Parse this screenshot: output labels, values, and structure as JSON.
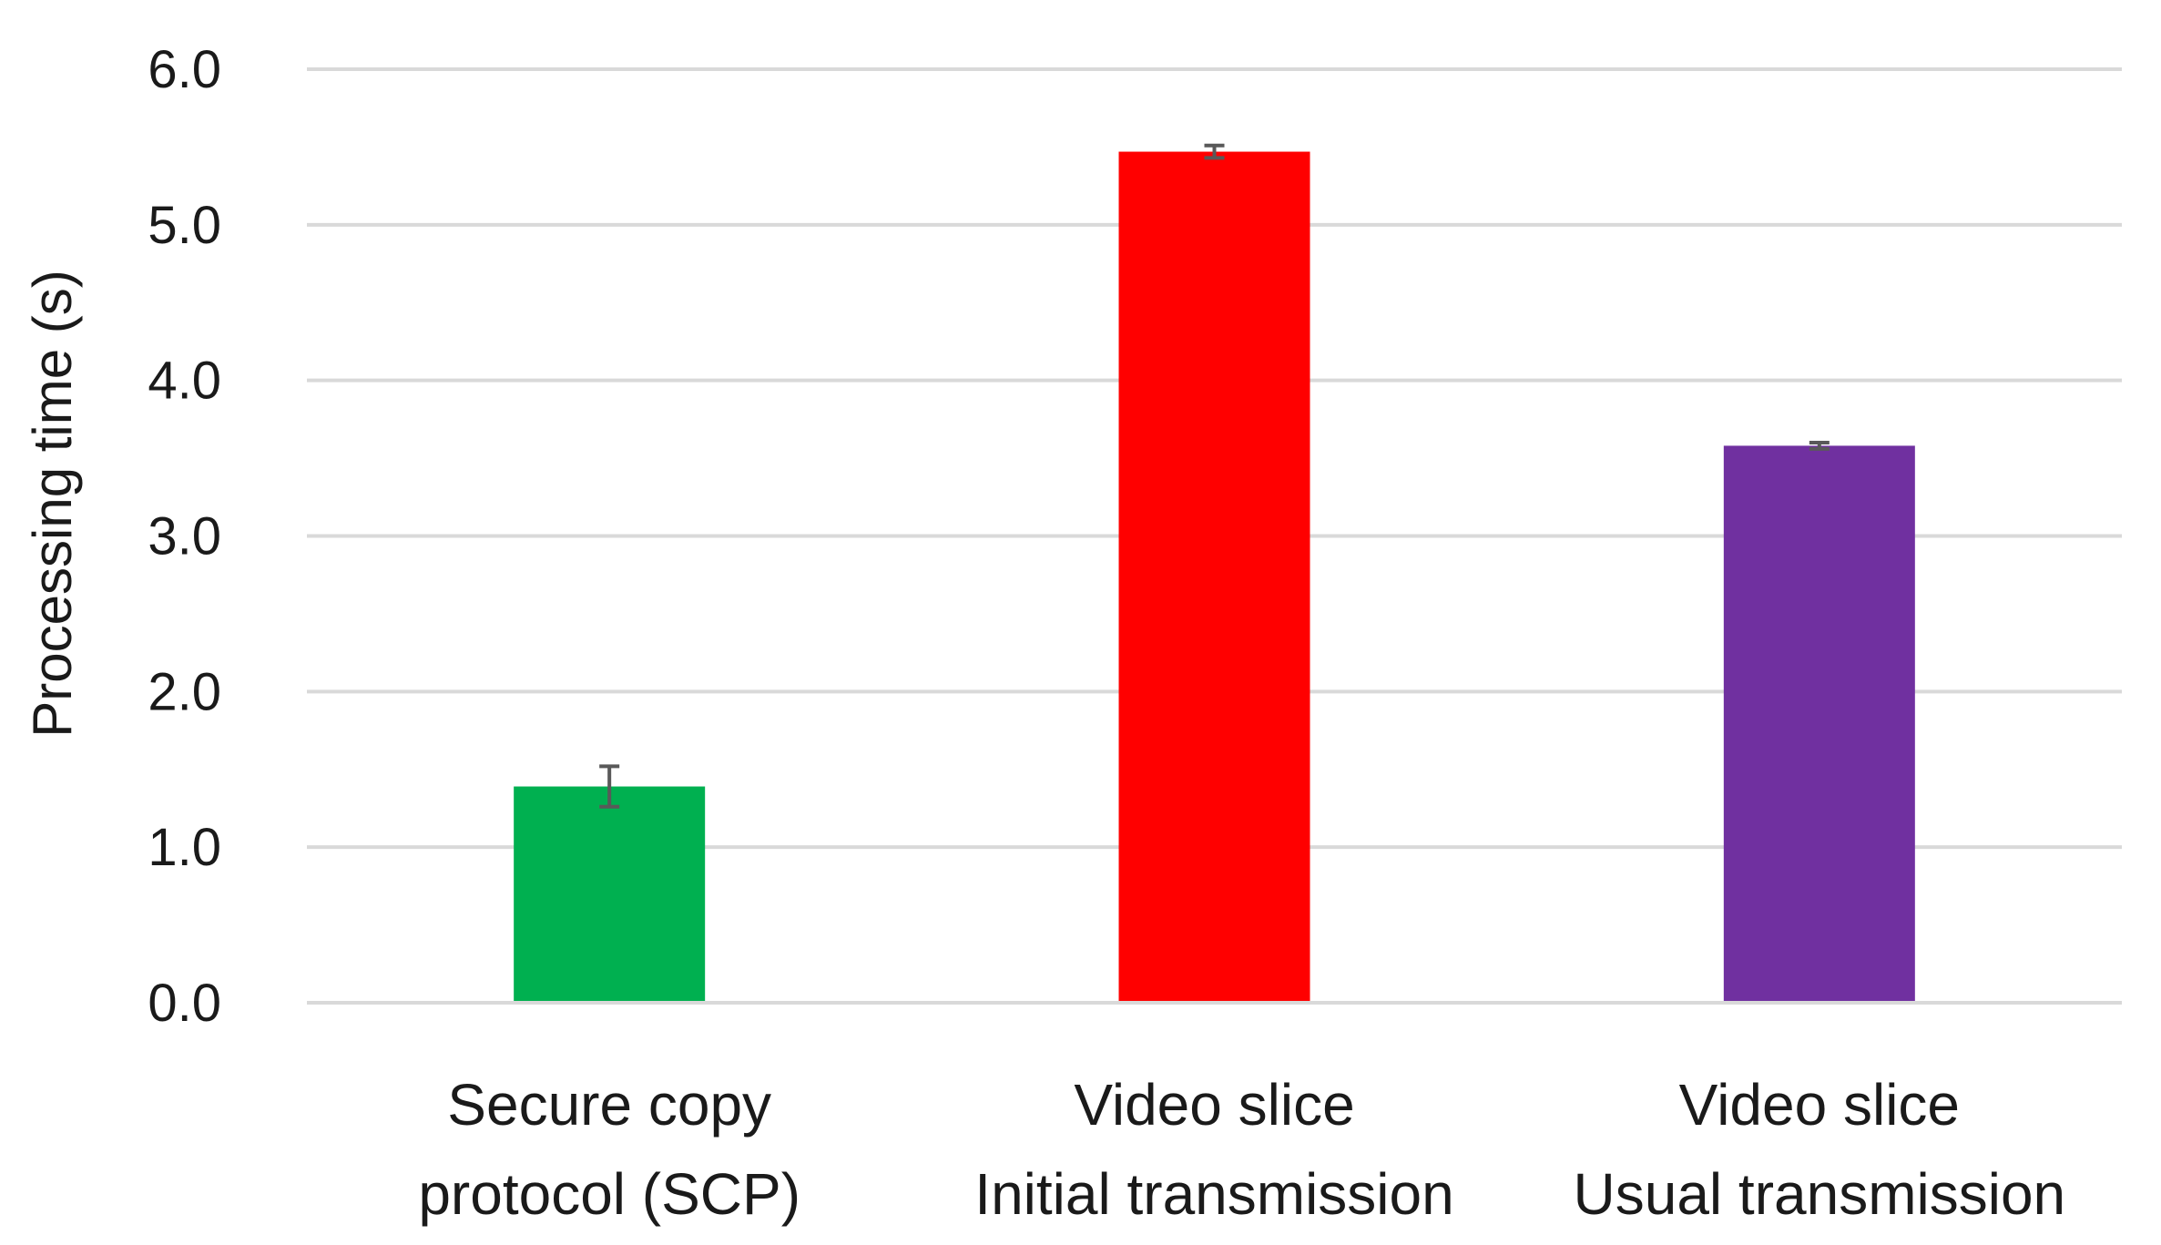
{
  "chart_data": {
    "type": "bar",
    "title": "",
    "xlabel": "",
    "ylabel": "Processing time (s)",
    "ylim": [
      0,
      6.0
    ],
    "yticks": [
      "0.0",
      "1.0",
      "2.0",
      "3.0",
      "4.0",
      "5.0",
      "6.0"
    ],
    "grid": true,
    "categories": [
      [
        "Secure copy",
        "protocol (SCP)"
      ],
      [
        "Video slice",
        "Initial transmission"
      ],
      [
        "Video slice",
        "Usual transmission"
      ]
    ],
    "values": [
      1.39,
      5.47,
      3.58
    ],
    "errors": [
      0.13,
      0.04,
      0.02
    ],
    "colors": [
      "#00b050",
      "#ff0000",
      "#7030a0"
    ],
    "gridline_color": "#d9d9d9",
    "errorbar_color": "#595959"
  }
}
